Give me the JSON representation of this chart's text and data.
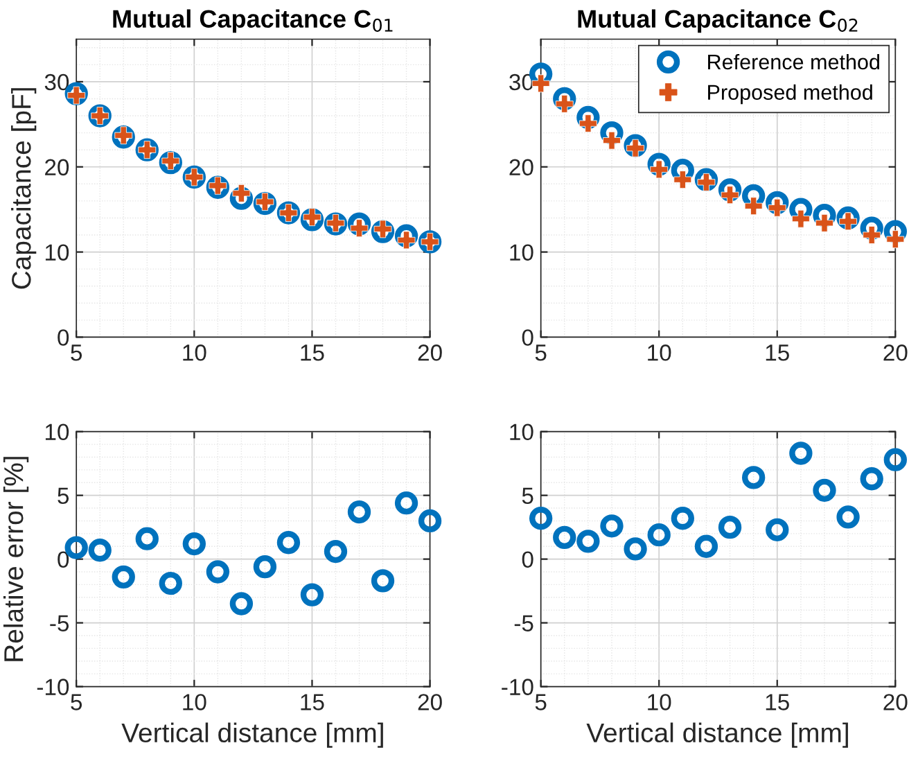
{
  "chart_data": [
    {
      "type": "scatter",
      "title": "Mutual Capacitance C$_{01}$",
      "ylabel": "Capacitance [pF]",
      "x": [
        5,
        6,
        7,
        8,
        9,
        10,
        11,
        12,
        13,
        14,
        15,
        16,
        17,
        18,
        19,
        20
      ],
      "xlim": [
        5,
        20
      ],
      "xticks": [
        5,
        10,
        15,
        20
      ],
      "ylim": [
        0,
        35
      ],
      "yticks": [
        0,
        10,
        20,
        30
      ],
      "grid": true,
      "legend": false,
      "series": [
        {
          "color": "#0072bd",
          "marker": "circle",
          "values": [
            28.6,
            26.0,
            23.5,
            22.0,
            20.5,
            18.8,
            17.6,
            16.3,
            15.7,
            14.6,
            13.8,
            13.3,
            13.3,
            12.4,
            11.9,
            11.2
          ]
        },
        {
          "color": "#d95319",
          "marker": "cross",
          "values": [
            28.4,
            26.0,
            23.7,
            22.0,
            20.7,
            18.8,
            17.8,
            16.9,
            15.9,
            14.6,
            14.1,
            13.4,
            12.8,
            12.7,
            11.4,
            11.2
          ]
        }
      ]
    },
    {
      "type": "scatter",
      "title": "Mutual Capacitance C$_{02}$",
      "x": [
        5,
        6,
        7,
        8,
        9,
        10,
        11,
        12,
        13,
        14,
        15,
        16,
        17,
        18,
        19,
        20
      ],
      "xlim": [
        5,
        20
      ],
      "xticks": [
        5,
        10,
        15,
        20
      ],
      "ylim": [
        0,
        35
      ],
      "yticks": [
        0,
        10,
        20,
        30
      ],
      "grid": true,
      "legend": "top right",
      "series": [
        {
          "name": "Reference method",
          "color": "#0072bd",
          "marker": "circle",
          "values": [
            30.9,
            28.0,
            25.8,
            24.0,
            22.5,
            20.3,
            19.6,
            18.5,
            17.3,
            16.6,
            15.8,
            15.0,
            14.3,
            14.0,
            12.8,
            12.4
          ]
        },
        {
          "name": "Proposed method",
          "color": "#d95319",
          "marker": "cross",
          "values": [
            29.8,
            27.4,
            25.1,
            23.1,
            22.2,
            19.7,
            18.5,
            18.2,
            16.7,
            15.4,
            15.2,
            13.9,
            13.4,
            13.6,
            12.0,
            11.5
          ]
        }
      ]
    },
    {
      "type": "scatter",
      "xlabel": "Vertical distance [mm]",
      "ylabel": "Relative error [%]",
      "x": [
        5,
        6,
        7,
        8,
        9,
        10,
        11,
        12,
        13,
        14,
        15,
        16,
        17,
        18,
        19,
        20
      ],
      "xlim": [
        5,
        20
      ],
      "xticks": [
        5,
        10,
        15,
        20
      ],
      "ylim": [
        -10,
        10
      ],
      "yticks": [
        -10,
        -5,
        0,
        5,
        10
      ],
      "grid": true,
      "legend": false,
      "series": [
        {
          "color": "#0072bd",
          "marker": "circle",
          "values": [
            0.9,
            0.7,
            -1.4,
            1.6,
            -1.9,
            1.2,
            -1.0,
            -3.5,
            -0.6,
            1.3,
            -2.8,
            0.6,
            3.7,
            -1.7,
            4.4,
            3.0
          ]
        }
      ]
    },
    {
      "type": "scatter",
      "xlabel": "Vertical distance [mm]",
      "x": [
        5,
        6,
        7,
        8,
        9,
        10,
        11,
        12,
        13,
        14,
        15,
        16,
        17,
        18,
        19,
        20
      ],
      "xlim": [
        5,
        20
      ],
      "xticks": [
        5,
        10,
        15,
        20
      ],
      "ylim": [
        -10,
        10
      ],
      "yticks": [
        -10,
        -5,
        0,
        5,
        10
      ],
      "grid": true,
      "legend": false,
      "series": [
        {
          "color": "#0072bd",
          "marker": "circle",
          "values": [
            3.2,
            1.7,
            1.4,
            2.6,
            0.8,
            1.9,
            3.2,
            1.0,
            2.5,
            6.4,
            2.3,
            8.3,
            5.4,
            3.3,
            6.3,
            7.8
          ]
        }
      ]
    }
  ]
}
